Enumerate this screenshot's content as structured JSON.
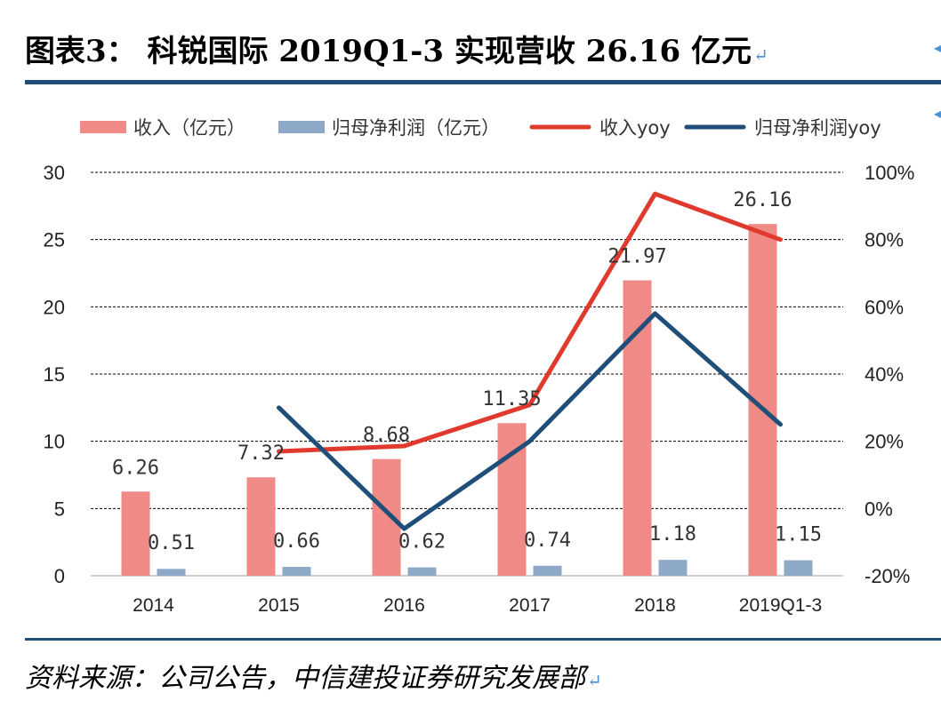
{
  "title": "图表3： 科锐国际 2019Q1-3 实现营收 26.16 亿元",
  "source": "资料来源：公司公告，中信建投证券研究发展部",
  "colors": {
    "revenue_bar": "#f08a87",
    "profit_bar": "#8ea9c8",
    "revenue_line": "#e03a2e",
    "profit_line": "#1f4e79",
    "rule": "#1f4e79"
  },
  "chart_data": {
    "type": "bar",
    "categories": [
      "2014",
      "2015",
      "2016",
      "2017",
      "2018",
      "2019Q1-3"
    ],
    "series": [
      {
        "name": "收入（亿元）",
        "kind": "bar",
        "axis": "left",
        "values": [
          6.26,
          7.32,
          8.68,
          11.35,
          21.97,
          26.16
        ],
        "labels": [
          "6.26",
          "7.32",
          "8.68",
          "11.35",
          "21.97",
          "26.16"
        ]
      },
      {
        "name": "归母净利润（亿元）",
        "kind": "bar",
        "axis": "left",
        "values": [
          0.51,
          0.66,
          0.62,
          0.74,
          1.18,
          1.15
        ],
        "labels": [
          "0.51",
          "0.66",
          "0.62",
          "0.74",
          "1.18",
          "1.15"
        ]
      },
      {
        "name": "收入yoy",
        "kind": "line",
        "axis": "right",
        "values": [
          null,
          17,
          18.6,
          30.8,
          93.6,
          80
        ]
      },
      {
        "name": "归母净利润yoy",
        "kind": "line",
        "axis": "right",
        "values": [
          null,
          30,
          -6,
          20,
          58,
          25
        ]
      }
    ],
    "left_axis": {
      "ylim": [
        0,
        30
      ],
      "ticks": [
        "0",
        "5",
        "10",
        "15",
        "20",
        "25",
        "30"
      ]
    },
    "right_axis": {
      "ylim": [
        -20,
        100
      ],
      "ticks": [
        "-20%",
        "0%",
        "20%",
        "40%",
        "60%",
        "80%",
        "100%"
      ]
    },
    "grid": "dashed",
    "legend_position": "top"
  }
}
